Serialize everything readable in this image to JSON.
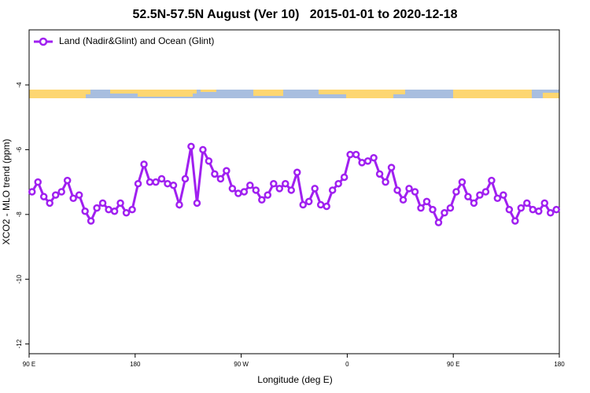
{
  "chart_data": {
    "type": "line",
    "title": "52.5N-57.5N August (Ver 10)   2015-01-01 to 2020-12-18",
    "xlabel": "Longitude (deg E)",
    "ylabel": "XCO2 - MLO trend (ppm)",
    "xlim": [
      90,
      540
    ],
    "ylim": [
      -12.3,
      -2.3
    ],
    "xticks": [
      {
        "value": 90,
        "label": "90 E"
      },
      180,
      {
        "value": 270,
        "label": "90 W"
      },
      {
        "value": 360,
        "label": "0"
      },
      {
        "value": 450,
        "label": "90 E"
      },
      {
        "value": 540,
        "label": "180"
      }
    ],
    "yticks": [
      -4,
      -6,
      -8,
      -10,
      -12
    ],
    "legend": "top-left",
    "series": [
      {
        "name": "Land (Nadir&Glint) and Ocean (Glint)",
        "color": "#a020f0",
        "x": [
          92.5,
          97.5,
          102.5,
          107.5,
          112.5,
          117.5,
          122.5,
          127.5,
          132.5,
          137.5,
          142.5,
          147.5,
          152.5,
          157.5,
          162.5,
          167.5,
          172.5,
          177.5,
          182.5,
          187.5,
          192.5,
          197.5,
          202.5,
          207.5,
          212.5,
          217.5,
          222.5,
          227.5,
          232.5,
          237.5,
          242.5,
          247.5,
          252.5,
          257.5,
          262.5,
          267.5,
          272.5,
          277.5,
          282.5,
          287.5,
          292.5,
          297.5,
          302.5,
          307.5,
          312.5,
          317.5,
          322.5,
          327.5,
          332.5,
          337.5,
          342.5,
          347.5,
          352.5,
          357.5,
          362.5,
          367.5,
          372.5,
          377.5,
          382.5,
          387.5,
          392.5,
          397.5,
          402.5,
          407.5,
          412.5,
          417.5,
          422.5,
          427.5,
          432.5,
          437.5,
          442.5,
          447.5,
          452.5,
          457.5,
          462.5,
          467.5,
          472.5,
          477.5,
          482.5,
          487.5,
          492.5,
          497.5,
          502.5,
          507.5,
          512.5,
          517.5,
          522.5,
          527.5,
          532.5,
          537.5
        ],
        "values": [
          -7.3,
          -7.0,
          -7.45,
          -7.65,
          -7.4,
          -7.3,
          -6.95,
          -7.5,
          -7.4,
          -7.9,
          -8.2,
          -7.8,
          -7.65,
          -7.85,
          -7.9,
          -7.65,
          -7.95,
          -7.85,
          -7.05,
          -6.45,
          -7.0,
          -7.0,
          -6.9,
          -7.05,
          -7.1,
          -7.7,
          -6.9,
          -5.9,
          -7.65,
          -6.0,
          -6.35,
          -6.75,
          -6.9,
          -6.65,
          -7.2,
          -7.35,
          -7.3,
          -7.1,
          -7.25,
          -7.55,
          -7.4,
          -7.05,
          -7.2,
          -7.05,
          -7.25,
          -6.7,
          -7.7,
          -7.6,
          -7.2,
          -7.7,
          -7.75,
          -7.25,
          -7.05,
          -6.85,
          -6.15,
          -6.15,
          -6.4,
          -6.35,
          -6.25,
          -6.75,
          -7.0,
          -6.55,
          -7.25,
          -7.55,
          -7.2,
          -7.3,
          -7.8,
          -7.6,
          -7.85,
          -8.25,
          -7.95,
          -7.8,
          -7.3,
          -7.0,
          -7.45,
          -7.65,
          -7.4,
          -7.3,
          -6.95,
          -7.5,
          -7.4,
          -7.85,
          -8.2,
          -7.8,
          -7.65,
          -7.85,
          -7.9,
          -7.65,
          -7.95,
          -7.85
        ]
      }
    ]
  }
}
